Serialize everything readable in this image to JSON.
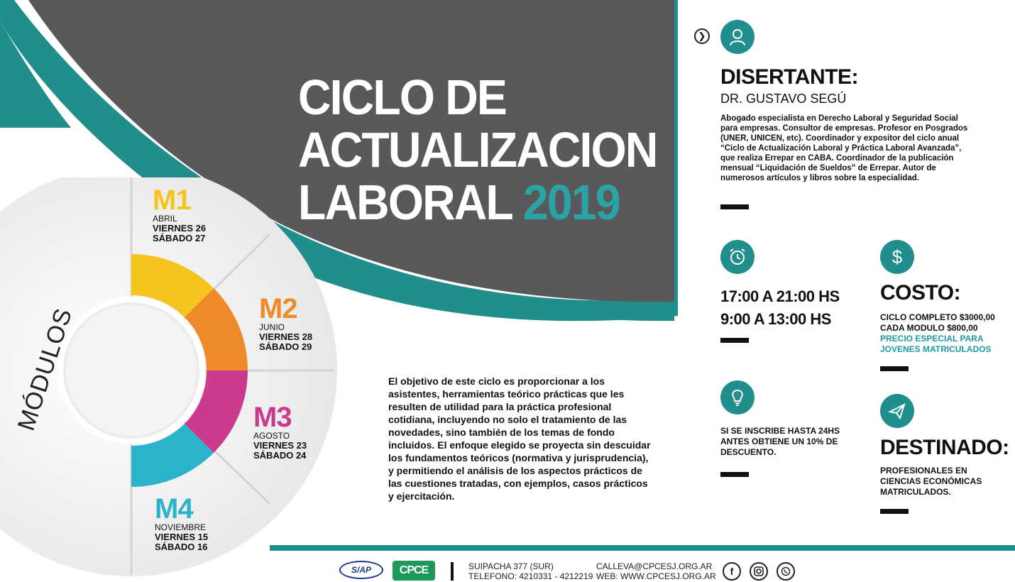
{
  "title": {
    "line1": "CICLO DE",
    "line2": "ACTUALIZACION",
    "line3_text": "LABORAL",
    "line3_year": "2019"
  },
  "modules_label": "MÓDULOS",
  "modules": [
    {
      "code": "M1",
      "month": "ABRIL",
      "day1": "VIERNES 26",
      "day2": "SÁBADO 27",
      "color": "#f5c41f"
    },
    {
      "code": "M2",
      "month": "JUNIO",
      "day1": "VIERNES 28",
      "day2": "SÁBADO 29",
      "color": "#ee8a2a"
    },
    {
      "code": "M3",
      "month": "AGOSTO",
      "day1": "VIERNES 23",
      "day2": "SÁBADO 24",
      "color": "#cc3a8e"
    },
    {
      "code": "M4",
      "month": "NOVIEMBRE",
      "day1": "VIERNES 15",
      "day2": "SÁBADO 16",
      "color": "#2bb3cc"
    }
  ],
  "description": "El objetivo de este ciclo es proporcionar a los asistentes, herramientas teórico prácticas que les resulten de utilidad para la práctica profesional cotidiana, incluyendo no solo el tratamiento de las novedades, sino también de los temas de fondo incluidos. El enfoque elegido se proyecta sin descuidar los fundamentos teóricos (normativa y jurisprudencia), y permitiendo el análisis de los aspectos prácticos de las cuestiones tratadas, con ejemplos, casos prácticos y ejercitación.",
  "speaker": {
    "heading": "DISERTANTE:",
    "name": "DR. GUSTAVO SEGÚ",
    "bio": "Abogado especialista en Derecho Laboral y Seguridad Social para empresas. Consultor de empresas. Profesor en Posgrados (UNER, UNICEN, etc). Coordinador y expositor del ciclo anual “Ciclo de Actualización Laboral y Práctica Laboral Avanzada”, que realiza Errepar en CABA. Coordinador de la publicación mensual “Liquidación de Sueldos” de Errepar. Autor de numerosos artículos y libros sobre la especialidad."
  },
  "schedule": {
    "line1": "17:00 A 21:00 HS",
    "line2": "9:00 A 13:00 HS"
  },
  "cost": {
    "heading": "COSTO:",
    "line1": "CICLO COMPLETO $3000,00",
    "line2": "CADA MODULO $800,00",
    "special1": "PRECIO ESPECIAL PARA",
    "special2": "JOVENES MATRICULADOS"
  },
  "discount": {
    "line1": "SI SE INSCRIBE HASTA 24HS",
    "line2": "ANTES OBTIENE UN 10% DE",
    "line3": "DESCUENTO."
  },
  "audience": {
    "heading": "DESTINADO:",
    "line1": "PROFESIONALES EN",
    "line2": "CIENCIAS ECONÓMICAS",
    "line3": "MATRICULADOS."
  },
  "footer": {
    "logo1": "S/AP",
    "logo2": "CPCE",
    "address1": "SUIPACHA 377 (SUR)",
    "address2": "TELEFONO: 4210331 - 4212219",
    "email": "CALLEVA@CPCESJ.ORG.AR",
    "web": "WEB: WWW.CPCESJ.ORG.AR"
  },
  "icons": [
    "chevron-right-icon",
    "person-icon",
    "alarm-clock-icon",
    "dollar-icon",
    "lightbulb-icon",
    "paper-plane-icon",
    "facebook-icon",
    "instagram-icon",
    "whatsapp-icon"
  ],
  "colors": {
    "teal": "#1f8e8d",
    "dark_gray": "#59595b",
    "accent_teal": "#2aa3a6"
  }
}
